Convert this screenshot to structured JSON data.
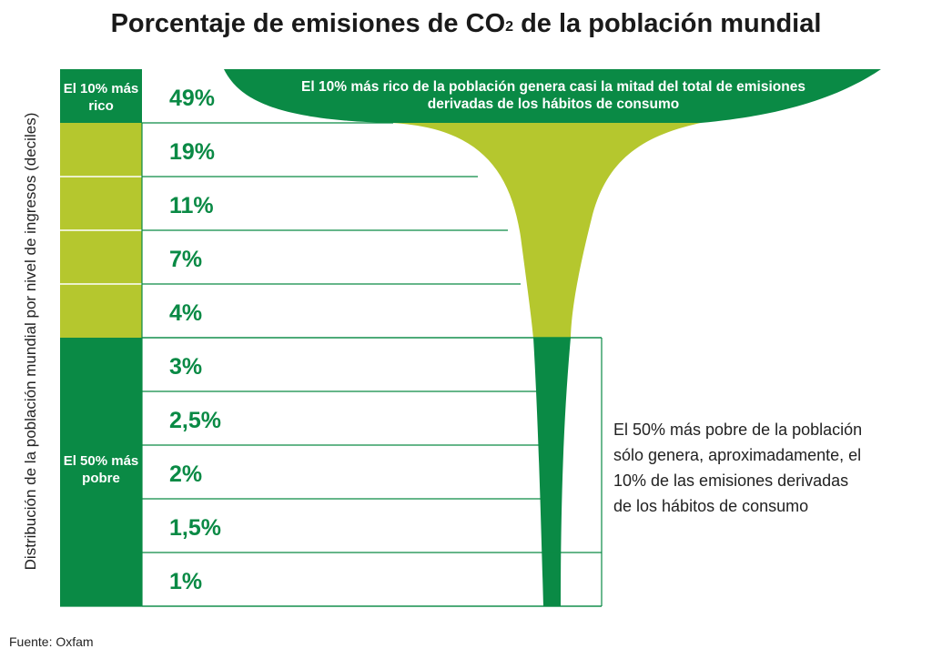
{
  "title": "Porcentaje de emisiones de CO",
  "title_sub": "2",
  "title_rest": " de la población mundial",
  "ylabel": "Distribución de la población mundial por nivel de ingresos (deciles)",
  "source": "Fuente: Oxfam",
  "top_group_label": "El 10% más rico",
  "bottom_group_label": "El 50% más pobre",
  "top_note": "El 10% más rico de la población genera casi la mitad del total de emisiones derivadas de los hábitos de consumo",
  "bottom_note": "El 50% más pobre de la población sólo genera, aproximadamente, el 10% de las emisiones derivadas de los hábitos de consumo",
  "colors": {
    "dark_green": "#0a8a45",
    "lime": "#b5c72e",
    "value_text": "#0a8a45"
  },
  "chart_data": {
    "type": "table",
    "rows": [
      {
        "decile": 10,
        "label": "49%",
        "value": 49,
        "group": "top"
      },
      {
        "decile": 9,
        "label": "19%",
        "value": 19,
        "group": "middle"
      },
      {
        "decile": 8,
        "label": "11%",
        "value": 11,
        "group": "middle"
      },
      {
        "decile": 7,
        "label": "7%",
        "value": 7,
        "group": "middle"
      },
      {
        "decile": 6,
        "label": "4%",
        "value": 4,
        "group": "middle"
      },
      {
        "decile": 5,
        "label": "3%",
        "value": 3,
        "group": "bottom"
      },
      {
        "decile": 4,
        "label": "2,5%",
        "value": 2.5,
        "group": "bottom"
      },
      {
        "decile": 3,
        "label": "2%",
        "value": 2,
        "group": "bottom"
      },
      {
        "decile": 2,
        "label": "1,5%",
        "value": 1.5,
        "group": "bottom"
      },
      {
        "decile": 1,
        "label": "1%",
        "value": 1,
        "group": "bottom"
      }
    ]
  }
}
